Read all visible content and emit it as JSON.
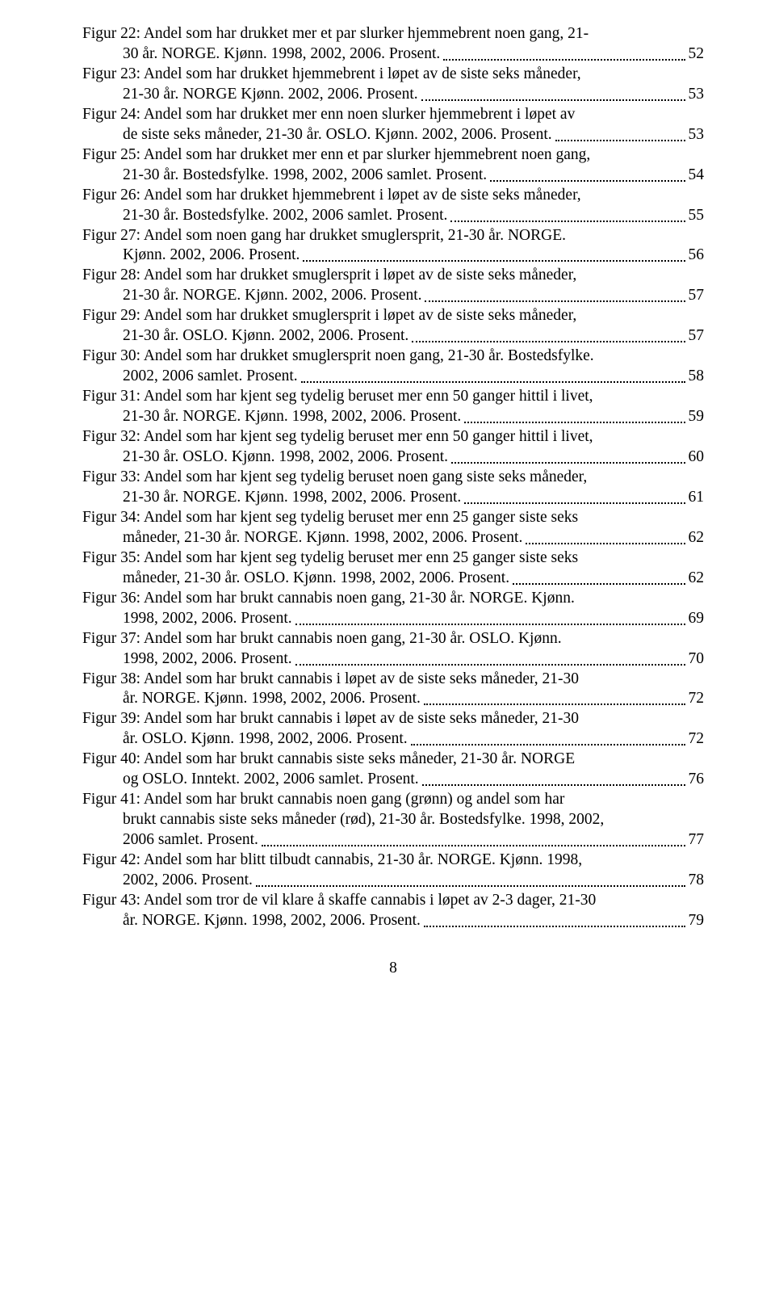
{
  "entries": [
    {
      "pre": "Figur 22: Andel som har drukket mer et par slurker hjemmebrent noen gang, 21-",
      "last": "30 år. NORGE. Kjønn. 1998, 2002, 2006. Prosent.",
      "page": "52"
    },
    {
      "pre": "Figur 23: Andel som har drukket hjemmebrent i løpet av de siste seks måneder,",
      "last": "21-30 år. NORGE Kjønn. 2002, 2006. Prosent.",
      "page": "53"
    },
    {
      "pre": "Figur 24: Andel som har drukket mer enn noen slurker hjemmebrent i løpet av",
      "last": "de siste seks måneder, 21-30 år. OSLO. Kjønn. 2002, 2006. Prosent.",
      "page": "53"
    },
    {
      "pre": "Figur 25: Andel som har drukket mer enn et par slurker hjemmebrent noen gang,",
      "last": "21-30 år. Bostedsfylke. 1998, 2002, 2006 samlet. Prosent.",
      "page": "54"
    },
    {
      "pre": "Figur 26: Andel som har drukket hjemmebrent i løpet av de siste seks måneder,",
      "last": "21-30 år. Bostedsfylke. 2002, 2006 samlet. Prosent.",
      "page": "55"
    },
    {
      "pre": "Figur 27: Andel som noen gang har drukket smuglersprit, 21-30 år. NORGE.",
      "last": "Kjønn. 2002, 2006. Prosent.",
      "page": "56"
    },
    {
      "pre": "Figur 28: Andel som har drukket smuglersprit i løpet av de siste seks måneder,",
      "last": "21-30 år. NORGE. Kjønn. 2002, 2006. Prosent.",
      "page": "57"
    },
    {
      "pre": "Figur 29: Andel som har drukket smuglersprit i løpet av de siste seks måneder,",
      "last": "21-30 år. OSLO. Kjønn. 2002, 2006. Prosent.",
      "page": "57"
    },
    {
      "pre": "Figur 30: Andel som har drukket smuglersprit noen gang, 21-30 år. Bostedsfylke.",
      "last": "2002, 2006 samlet. Prosent.",
      "page": "58"
    },
    {
      "pre": "Figur 31: Andel som har kjent seg tydelig beruset mer enn 50 ganger hittil i livet,",
      "last": "21-30 år. NORGE. Kjønn. 1998, 2002, 2006. Prosent.",
      "page": "59"
    },
    {
      "pre": "Figur 32: Andel som har kjent seg tydelig beruset mer enn 50 ganger hittil i livet,",
      "last": "21-30 år. OSLO. Kjønn. 1998, 2002, 2006. Prosent.",
      "page": "60"
    },
    {
      "pre": "Figur 33: Andel som har kjent seg tydelig beruset noen gang siste seks måneder,",
      "last": "21-30 år. NORGE. Kjønn. 1998, 2002, 2006. Prosent.",
      "page": "61"
    },
    {
      "pre": "Figur 34: Andel som har kjent seg tydelig beruset mer enn 25 ganger siste seks",
      "last": "måneder, 21-30 år. NORGE. Kjønn. 1998, 2002, 2006. Prosent.",
      "page": "62"
    },
    {
      "pre": "Figur 35: Andel som har kjent seg tydelig beruset mer enn 25 ganger siste seks",
      "last": "måneder, 21-30 år. OSLO. Kjønn. 1998, 2002, 2006. Prosent.",
      "page": "62"
    },
    {
      "pre": "Figur 36: Andel som har brukt cannabis noen gang, 21-30 år. NORGE. Kjønn.",
      "last": "1998, 2002, 2006. Prosent.",
      "page": "69"
    },
    {
      "pre": "Figur 37: Andel som har brukt cannabis noen gang, 21-30 år. OSLO. Kjønn.",
      "last": "1998, 2002, 2006. Prosent.",
      "page": "70"
    },
    {
      "pre": "Figur 38: Andel som har brukt cannabis i løpet av de siste seks måneder, 21-30",
      "last": "år. NORGE. Kjønn. 1998, 2002, 2006. Prosent.",
      "page": "72"
    },
    {
      "pre": "Figur 39: Andel som har brukt cannabis i løpet av de siste seks måneder, 21-30",
      "last": "år. OSLO. Kjønn. 1998, 2002, 2006. Prosent.",
      "page": "72"
    },
    {
      "pre": "Figur 40: Andel som har brukt cannabis siste seks måneder, 21-30 år. NORGE",
      "last": "og OSLO. Inntekt. 2002, 2006 samlet. Prosent.",
      "page": "76"
    },
    {
      "pre": "Figur 41: Andel som har brukt cannabis noen gang (grønn) og andel som har\nbrukt cannabis siste seks måneder (rød), 21-30 år. Bostedsfylke. 1998, 2002,",
      "last": "2006 samlet. Prosent.",
      "page": "77"
    },
    {
      "pre": "Figur 42: Andel som har blitt tilbudt cannabis, 21-30 år. NORGE. Kjønn. 1998,",
      "last": "2002, 2006. Prosent.",
      "page": "78"
    },
    {
      "pre": "Figur 43: Andel som tror de vil klare å skaffe cannabis i løpet av 2-3 dager, 21-30",
      "last": "år. NORGE. Kjønn. 1998, 2002, 2006. Prosent.",
      "page": "79"
    }
  ],
  "footer_page": "8"
}
